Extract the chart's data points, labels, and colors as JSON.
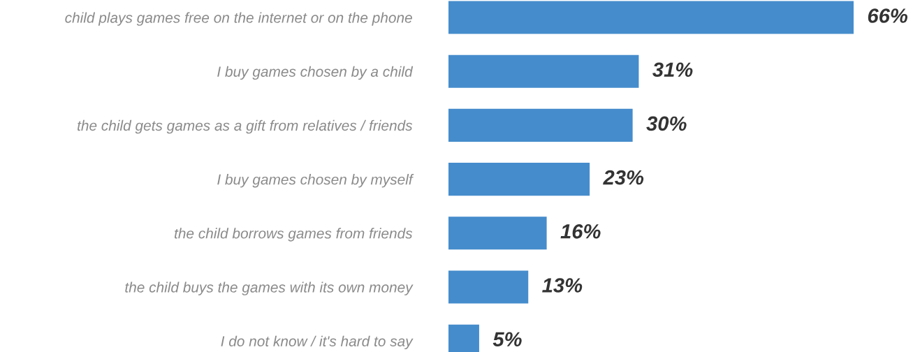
{
  "chart_data": {
    "type": "bar",
    "orientation": "horizontal",
    "categories": [
      "child plays games free on the internet or on the phone",
      "I buy games chosen by a child",
      "the child gets games as a gift from relatives / friends",
      "I buy games chosen by myself",
      "the child borrows games from friends",
      "the child buys the games with its own money",
      "I do not know / it's hard to say"
    ],
    "values": [
      66,
      31,
      30,
      23,
      16,
      13,
      5
    ],
    "value_labels": [
      "66%",
      "31%",
      "30%",
      "23%",
      "16%",
      "13%",
      "5%"
    ],
    "color": "#458ccc",
    "tick_labels": "y"
  }
}
